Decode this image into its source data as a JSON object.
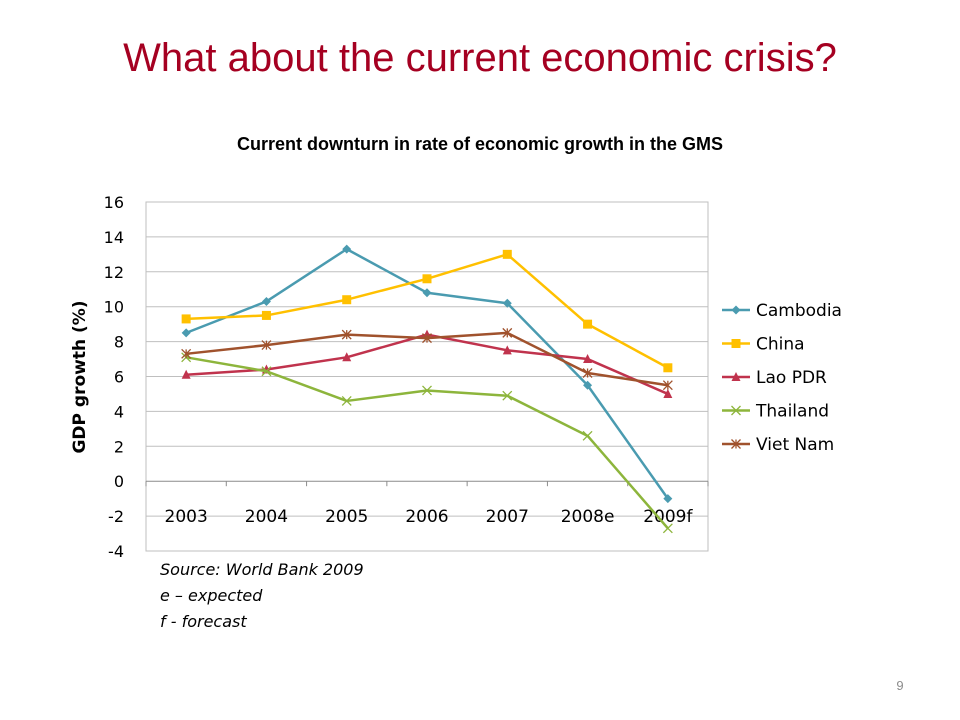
{
  "slide": {
    "title": "What about the current economic crisis?",
    "page_number": "9"
  },
  "source_lines": [
    "Source: World Bank 2009",
    "e – expected",
    "f - forecast"
  ],
  "chart_data": {
    "type": "line",
    "title": "Current downturn in rate of economic growth in the GMS",
    "xlabel": "",
    "ylabel": "GDP growth (%)",
    "categories": [
      "2003",
      "2004",
      "2005",
      "2006",
      "2007",
      "2008e",
      "2009f"
    ],
    "ylim": [
      -4,
      16
    ],
    "yticks": [
      16,
      14,
      12,
      10,
      8,
      6,
      4,
      2,
      0,
      -2,
      -4
    ],
    "grid": true,
    "legend_position": "right",
    "series": [
      {
        "name": "Cambodia",
        "color": "#4a9bb0",
        "marker": "diamond",
        "values": [
          8.5,
          10.3,
          13.3,
          10.8,
          10.2,
          5.5,
          -1.0
        ]
      },
      {
        "name": "China",
        "color": "#ffc000",
        "marker": "square",
        "values": [
          9.3,
          9.5,
          10.4,
          11.6,
          13.0,
          9.0,
          6.5
        ]
      },
      {
        "name": "Lao PDR",
        "color": "#c0334d",
        "marker": "triangle",
        "values": [
          6.1,
          6.4,
          7.1,
          8.4,
          7.5,
          7.0,
          5.0
        ]
      },
      {
        "name": "Thailand",
        "color": "#8db53c",
        "marker": "x",
        "values": [
          7.1,
          6.3,
          4.6,
          5.2,
          4.9,
          2.6,
          -2.7
        ]
      },
      {
        "name": "Viet Nam",
        "color": "#a0522d",
        "marker": "star",
        "values": [
          7.3,
          7.8,
          8.4,
          8.2,
          8.5,
          6.2,
          5.5
        ]
      }
    ]
  }
}
